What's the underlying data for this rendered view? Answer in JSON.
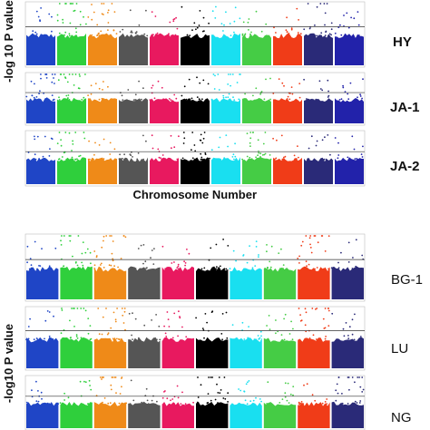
{
  "chart_data": [
    {
      "type": "scatter",
      "subtype": "manhattan",
      "title": "",
      "ylabel": "-log 10 P value",
      "xlabel": "Chromosome Number",
      "trait_labels_style": "bold",
      "chromosomes": [
        1,
        2,
        3,
        4,
        5,
        6,
        7,
        8,
        9,
        10,
        11
      ],
      "colors": [
        "#1f45c6",
        "#2fcf3c",
        "#ef8a18",
        "#555555",
        "#e8195f",
        "#000000",
        "#19dff0",
        "#45cc45",
        "#f03c18",
        "#2a2a78",
        "#2222aa"
      ],
      "threshold_line": true,
      "panels": [
        {
          "trait": "HY",
          "peak_chromosomes": [
            2,
            3,
            10
          ]
        },
        {
          "trait": "JA-1",
          "peak_chromosomes": [
            1,
            2,
            7
          ]
        },
        {
          "trait": "JA-2",
          "peak_chromosomes": [
            2,
            6,
            8
          ]
        }
      ]
    },
    {
      "type": "scatter",
      "subtype": "manhattan",
      "title": "",
      "ylabel": "-log10 P value",
      "xlabel": "",
      "trait_labels_style": "normal",
      "chromosomes": [
        1,
        2,
        3,
        4,
        5,
        6,
        7,
        8,
        9,
        10
      ],
      "colors": [
        "#1f45c6",
        "#2fcf3c",
        "#ef8a18",
        "#555555",
        "#e8195f",
        "#000000",
        "#19dff0",
        "#45cc45",
        "#f03c18",
        "#2a2a78"
      ],
      "threshold_line": true,
      "panels": [
        {
          "trait": "BG-1",
          "peak_chromosomes": [
            2,
            3,
            9
          ]
        },
        {
          "trait": "LU",
          "peak_chromosomes": [
            2,
            3,
            9
          ]
        },
        {
          "trait": "NG",
          "peak_chromosomes": [
            3,
            6,
            10
          ]
        }
      ]
    }
  ]
}
